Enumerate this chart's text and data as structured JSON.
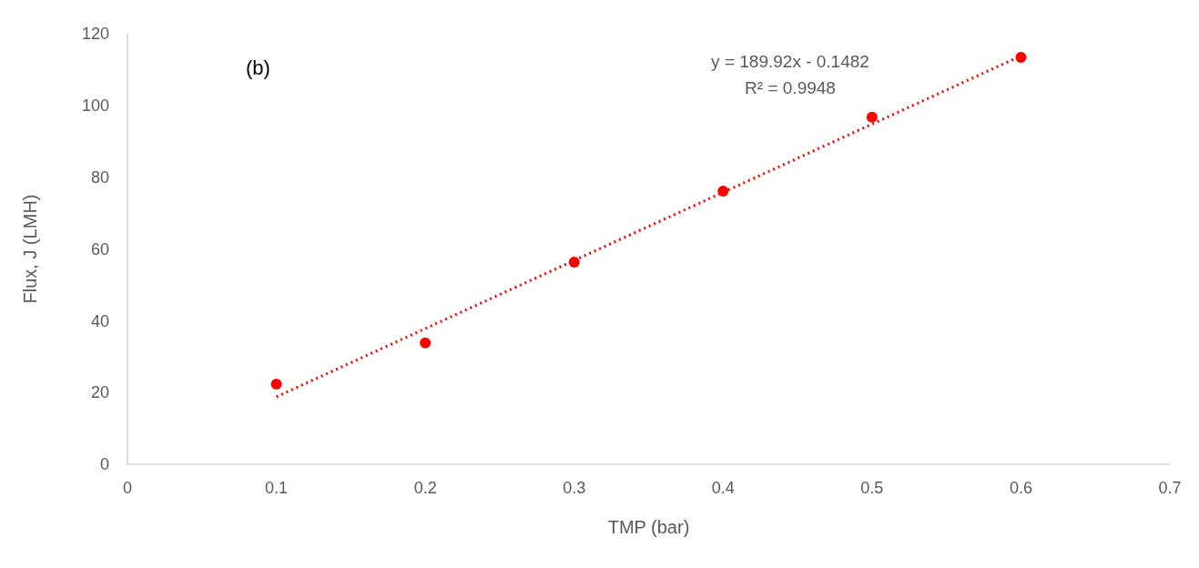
{
  "chart_data": {
    "type": "scatter",
    "xlabel": "TMP (bar)",
    "ylabel": "Flux, J (LMH)",
    "x": [
      0.1,
      0.2,
      0.3,
      0.4,
      0.5,
      0.6
    ],
    "series": [
      {
        "color": "#ff0000",
        "marker": "circle",
        "values": [
          22.3,
          33.8,
          56.3,
          76.1,
          96.7,
          113.4
        ]
      },
      {
        "type": "line",
        "color": "#ff0000",
        "line_style": "dotted",
        "marker": "none",
        "x": [
          0.1,
          0.6
        ],
        "values": [
          18.8,
          113.8
        ]
      }
    ],
    "xlim": [
      0,
      0.7
    ],
    "xticks": [
      0,
      0.1,
      0.2,
      0.3,
      0.4,
      0.5,
      0.6,
      0.7
    ],
    "ylim": [
      0,
      120
    ],
    "yticks": [
      0,
      20,
      40,
      60,
      80,
      100,
      120
    ],
    "grid": false,
    "annotations": [
      "(b)",
      "y = 189.92x - 0.1482",
      "R² = 0.9948"
    ]
  }
}
